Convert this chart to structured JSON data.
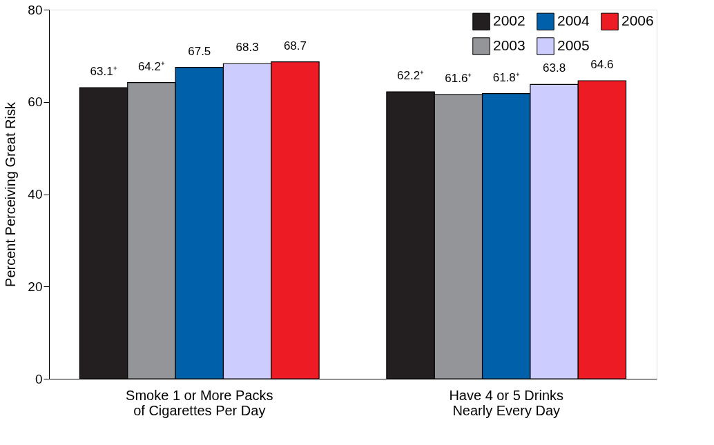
{
  "chart_data": {
    "type": "bar",
    "ylabel": "Percent Perceiving Great Risk",
    "categories": [
      "Smoke 1 or More Packs\nof Cigarettes Per Day",
      "Have 4 or 5 Drinks\nNearly Every Day"
    ],
    "series": [
      {
        "name": "2002",
        "color": "#231f20",
        "values": [
          63.1,
          62.2
        ],
        "value_labels": [
          "63.1⁺",
          "62.2⁺"
        ]
      },
      {
        "name": "2003",
        "color": "#939598",
        "values": [
          64.2,
          61.6
        ],
        "value_labels": [
          "64.2⁺",
          "61.6⁺"
        ]
      },
      {
        "name": "2004",
        "color": "#0060a9",
        "values": [
          67.5,
          61.8
        ],
        "value_labels": [
          "67.5",
          "61.8⁺"
        ]
      },
      {
        "name": "2005",
        "color": "#ccccff",
        "values": [
          68.3,
          63.8
        ],
        "value_labels": [
          "68.3",
          "63.8"
        ]
      },
      {
        "name": "2006",
        "color": "#ed1c24",
        "values": [
          68.7,
          64.6
        ],
        "value_labels": [
          "68.7",
          "64.6"
        ]
      }
    ],
    "ylim": [
      0,
      80
    ],
    "yticks": [
      0,
      20,
      40,
      60,
      80
    ],
    "grid": false,
    "legend": "top right"
  }
}
